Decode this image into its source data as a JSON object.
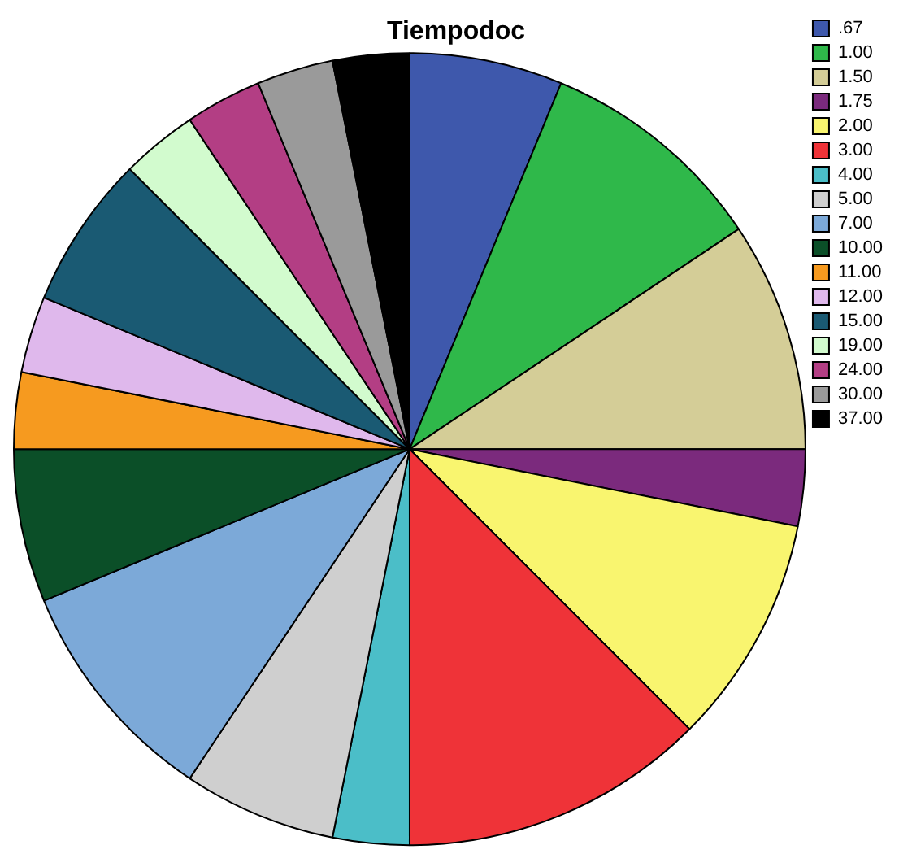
{
  "chart_data": {
    "type": "pie",
    "title": "Tiempodoc",
    "legend": "top right",
    "categories": [
      ".67",
      "1.00",
      "1.50",
      "1.75",
      "2.00",
      "3.00",
      "4.00",
      "5.00",
      "7.00",
      "10.00",
      "11.00",
      "12.00",
      "15.00",
      "19.00",
      "24.00",
      "30.00",
      "37.00"
    ],
    "values": [
      6.25,
      9.375,
      9.375,
      3.125,
      9.375,
      12.5,
      3.125,
      6.25,
      9.375,
      6.25,
      3.125,
      3.125,
      6.25,
      3.125,
      3.125,
      3.125,
      3.125
    ],
    "colors": [
      "#3e58ac",
      "#2fb84a",
      "#d4cd97",
      "#7b2a7d",
      "#f9f56f",
      "#ef3338",
      "#4bbec8",
      "#cfcfcf",
      "#7ca9d8",
      "#0b4f28",
      "#f69a1f",
      "#dfb8ec",
      "#1a5a73",
      "#d2fbce",
      "#b33e84",
      "#9a9a9a",
      "#000000"
    ]
  }
}
